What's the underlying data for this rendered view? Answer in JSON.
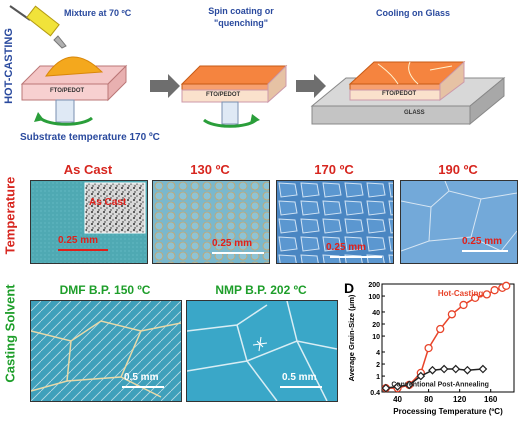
{
  "schematic": {
    "side_label": "HOT-CASTING",
    "step1_label": "Mixture at 70 ºC",
    "step1_substrate": "FTO/PEDOT",
    "step1_bottom": "Substrate temperature 170 ºC",
    "step2_label_line1": "Spin coating or",
    "step2_label_line2": "\"quenching\"",
    "step2_substrate": "FTO/PEDOT",
    "step3_label": "Cooling on Glass",
    "step3_substrate": "FTO/PEDOT",
    "step3_glass": "GLASS"
  },
  "temperature_row": {
    "side_label": "Temperature",
    "panels": [
      {
        "title": "As Cast",
        "scale": "0.25 mm",
        "inset": "As Cast"
      },
      {
        "title": "130 ºC",
        "scale": "0.25 mm"
      },
      {
        "title": "170 ºC",
        "scale": "0.25 mm"
      },
      {
        "title": "190 ºC",
        "scale": "0.25 mm"
      }
    ]
  },
  "solvent_row": {
    "side_label": "Casting Solvent",
    "panels": [
      {
        "title": "DMF B.P. 150 ºC",
        "scale": "0.5 mm"
      },
      {
        "title": "NMP B.P. 202 ºC",
        "scale": "0.5 mm"
      }
    ]
  },
  "chart_data": {
    "type": "line",
    "panel_label": "D",
    "xlabel": "Processing Temperature (ºC)",
    "ylabel": "Average Grain-Size (μm)",
    "xlim": [
      20,
      190
    ],
    "ylim": [
      0.4,
      200
    ],
    "yscale": "log",
    "xticks": [
      40,
      80,
      120,
      160
    ],
    "yticks": [
      0.4,
      1,
      2,
      4,
      10,
      20,
      40,
      100,
      200
    ],
    "ytick_labels": [
      "0.4",
      "1",
      "2",
      "4",
      "10",
      "20",
      "40",
      "100",
      "200"
    ],
    "series": [
      {
        "name": "Hot-Casting",
        "color": "#e8442a",
        "marker": "circle",
        "x": [
          25,
          40,
          55,
          70,
          80,
          95,
          110,
          125,
          140,
          155,
          165,
          175,
          180
        ],
        "y": [
          0.5,
          0.5,
          0.6,
          1.2,
          5,
          15,
          35,
          60,
          90,
          110,
          140,
          160,
          180
        ]
      },
      {
        "name": "Conventional Post-Annealing",
        "color": "#222222",
        "marker": "diamond",
        "x": [
          25,
          40,
          55,
          70,
          85,
          100,
          115,
          130,
          150
        ],
        "y": [
          0.5,
          0.55,
          0.6,
          1.0,
          1.4,
          1.5,
          1.5,
          1.4,
          1.5
        ]
      }
    ]
  }
}
